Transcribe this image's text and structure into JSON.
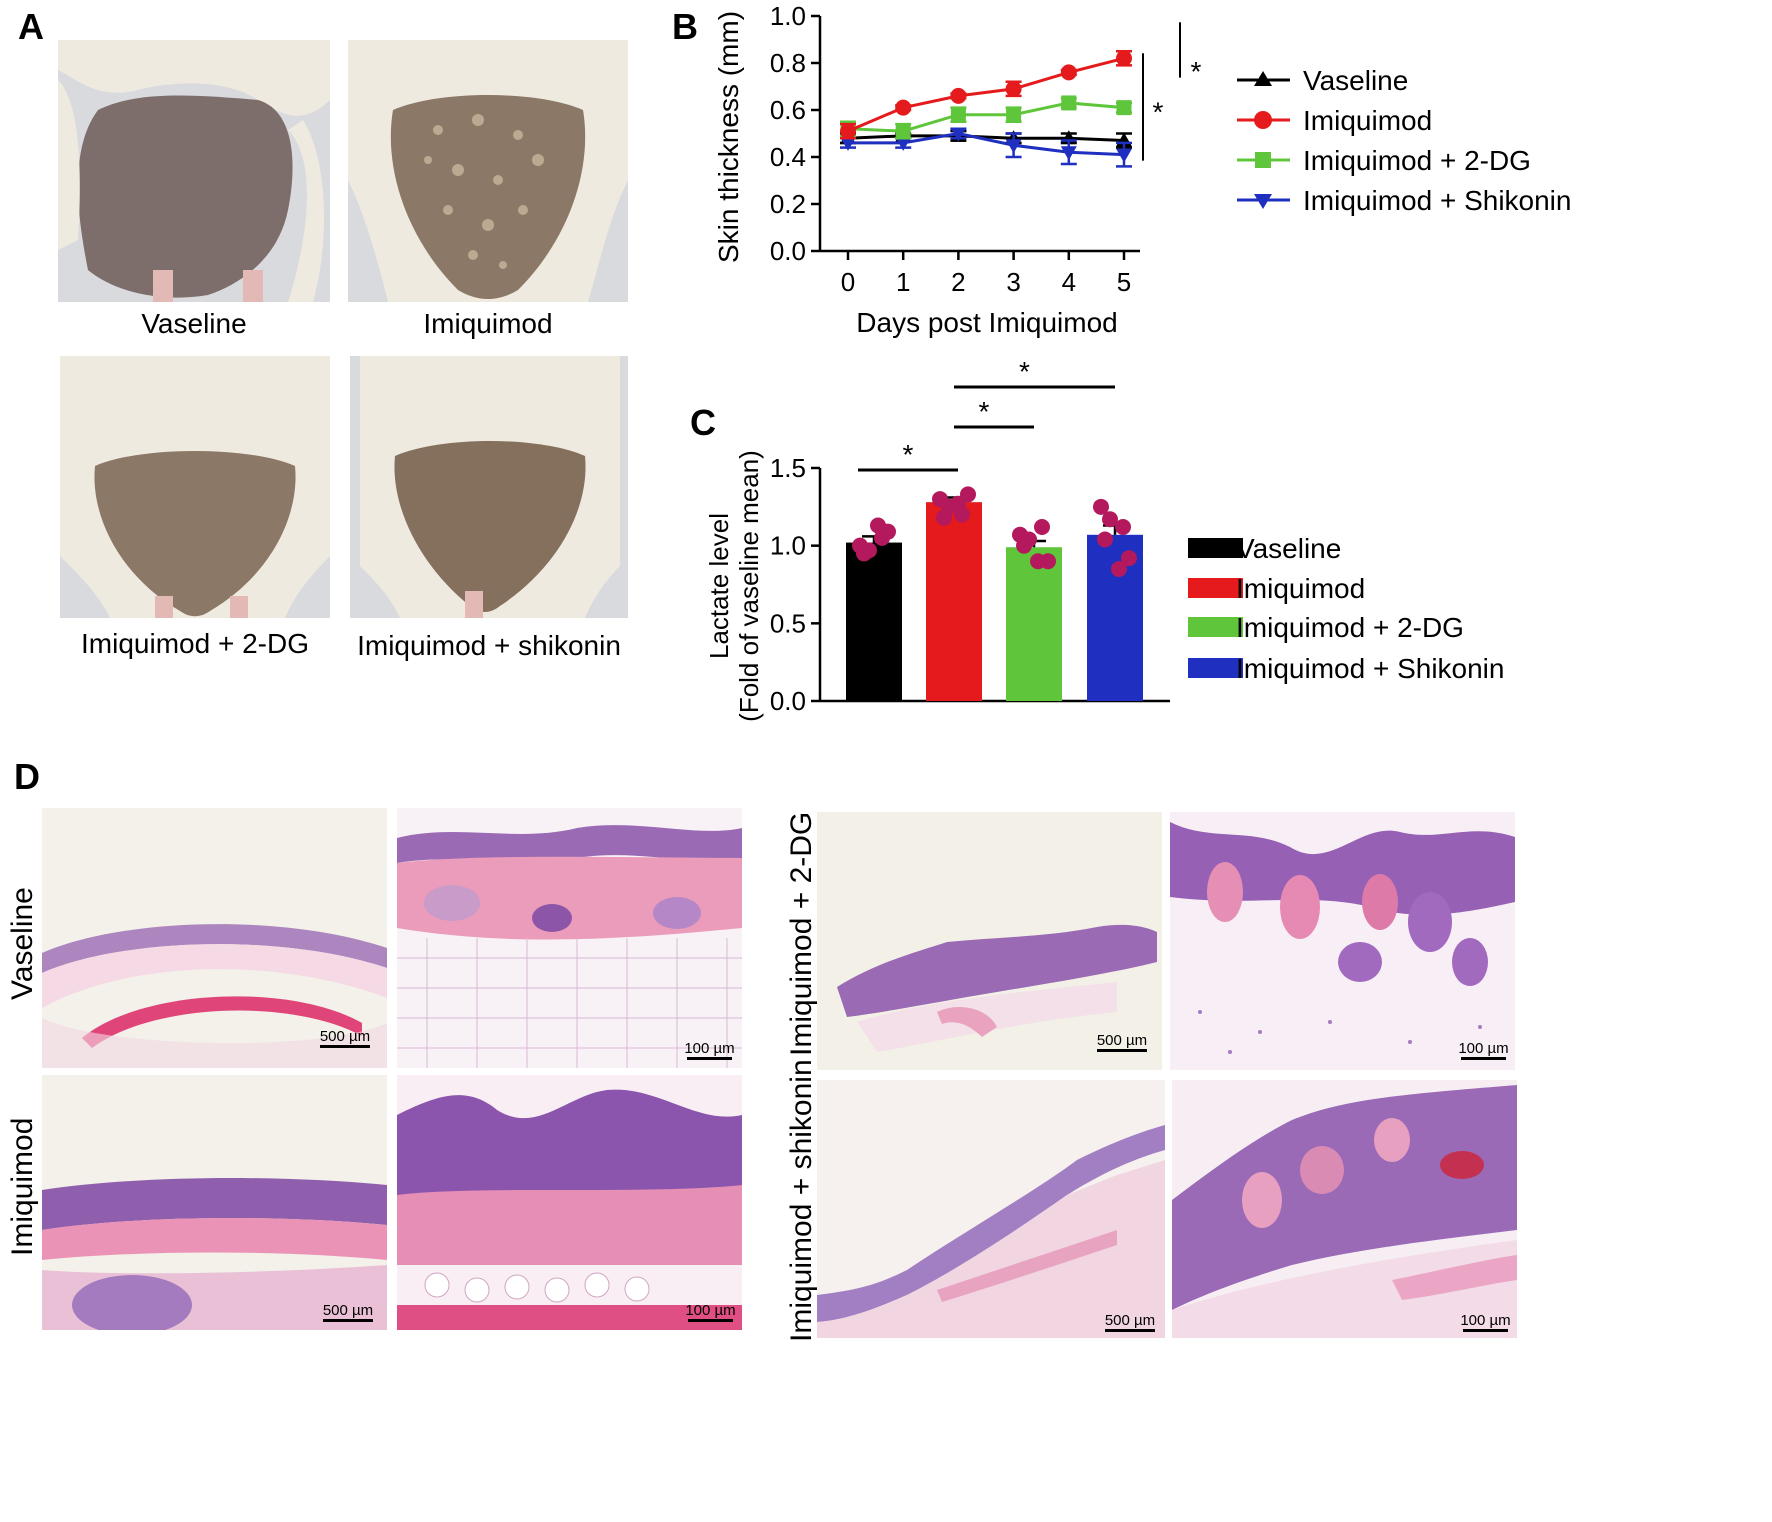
{
  "panel_a": {
    "letter": "A",
    "photos": [
      {
        "caption": "Vaseline"
      },
      {
        "caption": "Imiquimod"
      },
      {
        "caption": "Imiquimod + 2-DG"
      },
      {
        "caption": "Imiquimod + shikonin"
      }
    ]
  },
  "panel_b": {
    "letter": "B"
  },
  "panel_c": {
    "letter": "C"
  },
  "panel_d": {
    "letter": "D",
    "row_labels": [
      "Vaseline",
      "Imiquimod",
      "Imiquimod + 2-DG",
      "Imiquimod + shikonin"
    ],
    "scale_low": "500 µm",
    "scale_high": "100 µm"
  },
  "colors": {
    "vaseline": "#000000",
    "imiquimod": "#e41a1c",
    "two_dg": "#5fc63b",
    "shikonin": "#1f2fbf",
    "dots": "#b3195c",
    "skin": "#7a6a62",
    "fur": "#efeae0",
    "histo_bg": "#f3f1ea",
    "tissue_purple": "#9b6ab4",
    "tissue_pink": "#e592b4"
  },
  "chart_data": [
    {
      "type": "line",
      "xlabel": "Days post Imiquimod",
      "ylabel": "Skin thickness (mm)",
      "x": [
        0,
        1,
        2,
        3,
        4,
        5
      ],
      "xticks": [
        "0",
        "1",
        "2",
        "3",
        "4",
        "5"
      ],
      "yticks": [
        "0.0",
        "0.2",
        "0.4",
        "0.6",
        "0.8",
        "1.0"
      ],
      "ylim": [
        0,
        1.0
      ],
      "series": [
        {
          "name": "Vaseline",
          "marker": "triangle-up",
          "values": [
            0.48,
            0.49,
            0.49,
            0.48,
            0.48,
            0.47
          ],
          "err": [
            0.02,
            0.01,
            0.02,
            0.02,
            0.02,
            0.03
          ]
        },
        {
          "name": "Imiquimod",
          "marker": "circle",
          "values": [
            0.51,
            0.61,
            0.66,
            0.69,
            0.76,
            0.82
          ],
          "err": [
            0.03,
            0.01,
            0.01,
            0.03,
            0.01,
            0.03
          ]
        },
        {
          "name": "Imiquimod + 2-DG",
          "marker": "square",
          "values": [
            0.52,
            0.51,
            0.58,
            0.58,
            0.63,
            0.61
          ],
          "err": [
            0.03,
            0.03,
            0.03,
            0.03,
            0.02,
            0.02
          ]
        },
        {
          "name": "Imiquimod + Shikonin",
          "marker": "triangle-down",
          "values": [
            0.46,
            0.46,
            0.5,
            0.45,
            0.42,
            0.41
          ],
          "err": [
            0.02,
            0.02,
            0.02,
            0.05,
            0.05,
            0.05
          ]
        }
      ],
      "significance": [
        {
          "label": "*",
          "from_value": 0.82,
          "to_value": 0.61
        },
        {
          "label": "*",
          "from_value": 0.82,
          "to_value": 0.41
        }
      ],
      "legend_position": "right"
    },
    {
      "type": "bar",
      "ylabel": "Lactate level",
      "ylabel2": "(Fold of vaseline mean)",
      "categories": [
        "Vaseline",
        "Imiquimod",
        "Imiquimod + 2-DG",
        "Imiquimod + Shikonin"
      ],
      "values": [
        1.02,
        1.28,
        0.99,
        1.07
      ],
      "err": [
        0.04,
        0.03,
        0.04,
        0.06
      ],
      "points": [
        [
          1.0,
          0.97,
          1.05,
          1.09,
          1.13,
          0.95
        ],
        [
          1.3,
          1.25,
          1.2,
          1.33,
          1.27,
          1.18
        ],
        [
          1.07,
          1.04,
          1.12,
          0.9,
          0.9,
          1.0
        ],
        [
          1.25,
          1.17,
          1.12,
          0.92,
          0.85,
          1.04
        ]
      ],
      "yticks": [
        "0.0",
        "0.5",
        "1.0",
        "1.5"
      ],
      "ylim": [
        0,
        1.5
      ],
      "significance": [
        {
          "label": "*",
          "from": 0,
          "to": 1
        },
        {
          "label": "*",
          "from": 1,
          "to": 2
        },
        {
          "label": "*",
          "from": 1,
          "to": 3
        }
      ],
      "legend_position": "right"
    }
  ]
}
